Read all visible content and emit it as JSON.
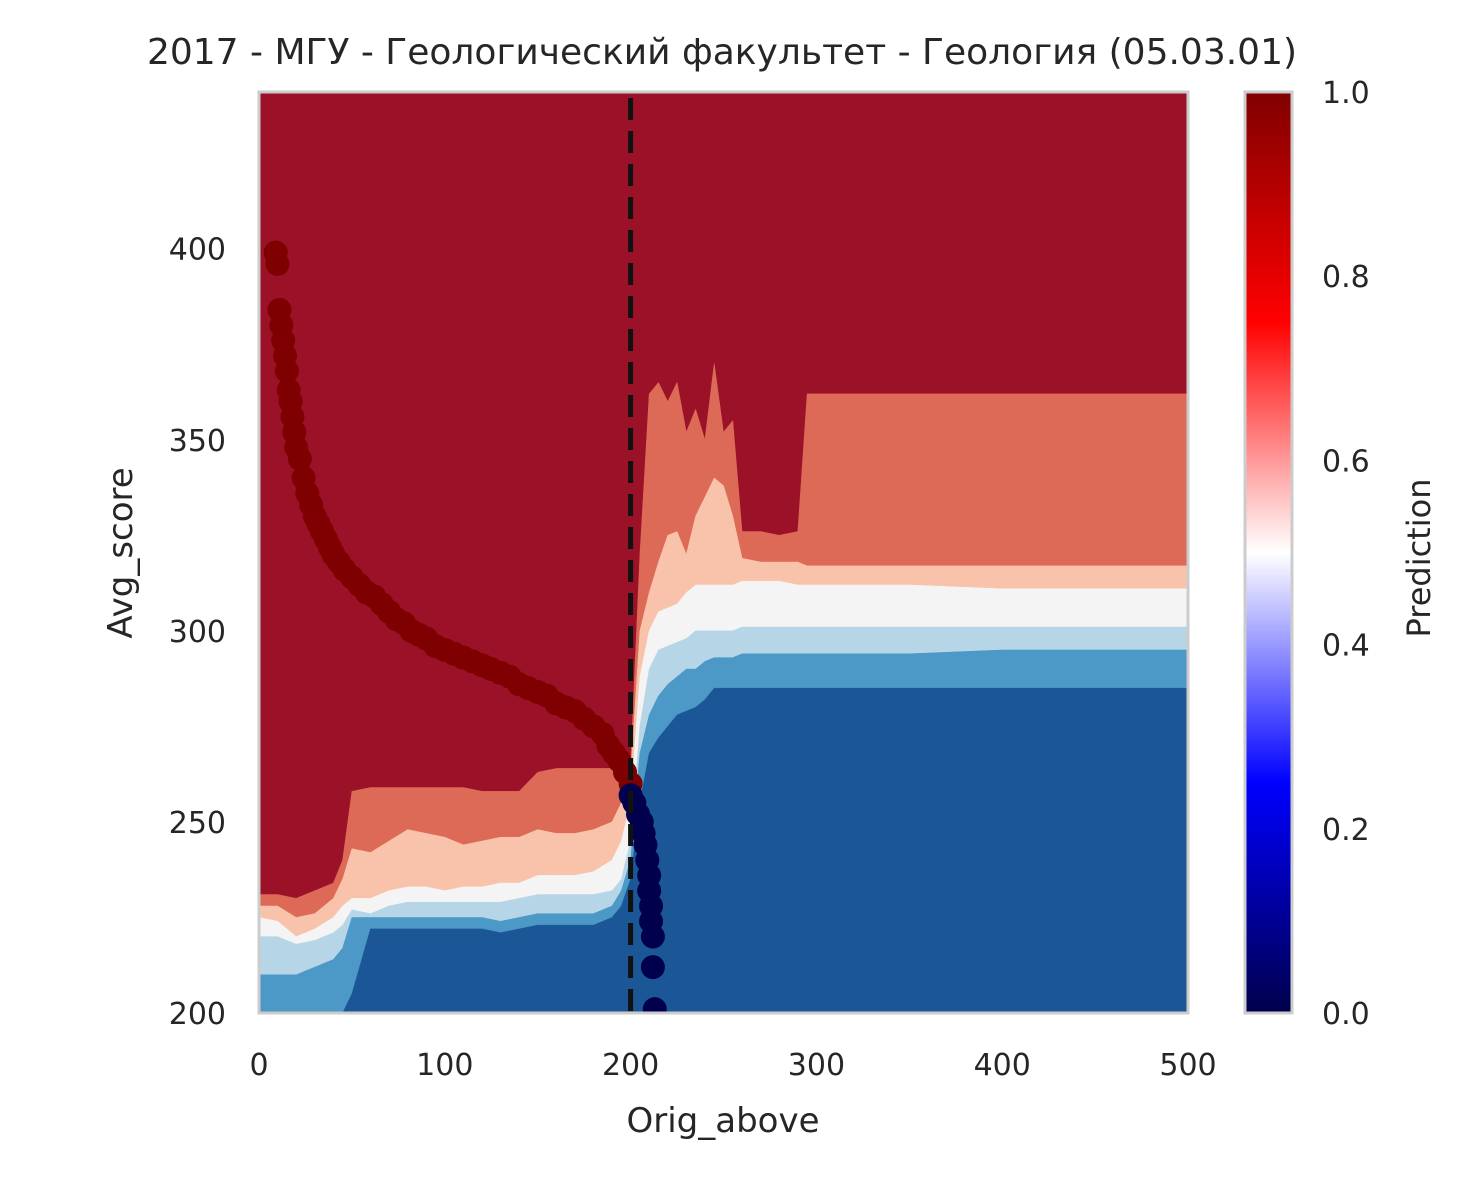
{
  "chart_data": {
    "type": "heatmap",
    "title": "2017 - МГУ - Геологический факультет - Геология (05.03.01)",
    "xlabel": "Orig_above",
    "ylabel": "Avg_score",
    "xlim": [
      0,
      500
    ],
    "ylim": [
      200,
      441
    ],
    "x_ticks": [
      "0",
      "100",
      "200",
      "300",
      "400",
      "500"
    ],
    "x_tick_values": [
      0,
      100,
      200,
      300,
      400,
      500
    ],
    "y_ticks": [
      "200",
      "250",
      "300",
      "350",
      "400"
    ],
    "y_tick_values": [
      200,
      250,
      300,
      350,
      400
    ],
    "grid": false,
    "threshold_line": {
      "x": 200,
      "style": "dashed",
      "color": "#111111"
    },
    "colorbar": {
      "label": "Prediction",
      "range": [
        0,
        1
      ],
      "ticks": [
        "0.0",
        "0.2",
        "0.4",
        "0.6",
        "0.8",
        "1.0"
      ],
      "tick_values": [
        0,
        0.2,
        0.4,
        0.6,
        0.8,
        1.0
      ],
      "colormap": "seismic",
      "stops": [
        {
          "offset": 0.0,
          "color": "#00004c"
        },
        {
          "offset": 0.25,
          "color": "#0000ff"
        },
        {
          "offset": 0.5,
          "color": "#ffffff"
        },
        {
          "offset": 0.75,
          "color": "#ff0000"
        },
        {
          "offset": 1.0,
          "color": "#800000"
        }
      ]
    },
    "contour_levels": [
      {
        "level": "0.9-1.0",
        "color": "#9b1228"
      },
      {
        "level": "0.7-0.9",
        "color": "#dc6a57"
      },
      {
        "level": "0.55-0.7",
        "color": "#f8c3aa"
      },
      {
        "level": "0.45-0.55",
        "color": "#f4f4f4"
      },
      {
        "level": "0.35-0.45",
        "color": "#b6d6e7"
      },
      {
        "level": "0.2-0.35",
        "color": "#4c98c7"
      },
      {
        "level": "0.0-0.2",
        "color": "#1b5796"
      }
    ],
    "contour_boundaries": {
      "x": [
        0,
        10,
        20,
        30,
        40,
        45,
        50,
        60,
        70,
        80,
        90,
        100,
        110,
        120,
        130,
        140,
        150,
        160,
        170,
        180,
        190,
        195,
        200,
        205,
        210,
        215,
        220,
        225,
        230,
        235,
        240,
        245,
        250,
        255,
        260,
        270,
        280,
        290,
        295,
        300,
        350,
        400,
        405,
        450,
        500
      ],
      "b_09": [
        231,
        231,
        230,
        232,
        234,
        240,
        258,
        259,
        259,
        259,
        259,
        259,
        259,
        258,
        258,
        258,
        263,
        264,
        264,
        264,
        264,
        264,
        265,
        320,
        362,
        365,
        360,
        365,
        352,
        358,
        350,
        370,
        352,
        355,
        326,
        326,
        325,
        326,
        362,
        362,
        362,
        362,
        362,
        362,
        362
      ],
      "b_07": [
        228,
        228,
        225,
        226,
        230,
        235,
        243,
        242,
        245,
        248,
        247,
        246,
        244,
        245,
        246,
        246,
        248,
        247,
        247,
        248,
        250,
        255,
        262,
        300,
        310,
        318,
        325,
        326,
        320,
        330,
        335,
        340,
        338,
        330,
        319,
        318,
        318,
        318,
        317,
        317,
        317,
        317,
        317,
        317,
        317
      ],
      "b_055": [
        225,
        224,
        220,
        222,
        225,
        228,
        230,
        230,
        232,
        233,
        233,
        232,
        233,
        233,
        234,
        234,
        236,
        236,
        236,
        237,
        240,
        245,
        255,
        288,
        300,
        305,
        306,
        307,
        310,
        312,
        312,
        312,
        312,
        312,
        313,
        313,
        313,
        312,
        312,
        312,
        312,
        311,
        311,
        311,
        311
      ],
      "b_045": [
        220,
        220,
        218,
        219,
        221,
        223,
        227,
        226,
        228,
        229,
        229,
        229,
        229,
        229,
        229,
        230,
        231,
        231,
        231,
        231,
        232,
        235,
        245,
        275,
        290,
        295,
        296,
        297,
        298,
        300,
        300,
        300,
        300,
        300,
        301,
        301,
        301,
        301,
        301,
        301,
        301,
        301,
        301,
        301,
        301
      ],
      "b_035": [
        210,
        210,
        210,
        212,
        214,
        217,
        225,
        225,
        225,
        225,
        225,
        225,
        225,
        225,
        224,
        225,
        226,
        226,
        226,
        226,
        228,
        232,
        240,
        268,
        278,
        283,
        286,
        288,
        290,
        290,
        292,
        293,
        293,
        293,
        294,
        294,
        294,
        294,
        294,
        294,
        294,
        295,
        295,
        295,
        295
      ],
      "b_02": [
        200,
        200,
        200,
        200,
        200,
        200,
        205,
        222,
        222,
        222,
        222,
        222,
        222,
        222,
        221,
        222,
        223,
        223,
        223,
        223,
        225,
        228,
        235,
        255,
        268,
        272,
        275,
        278,
        279,
        280,
        282,
        285,
        285,
        285,
        285,
        285,
        285,
        285,
        285,
        285,
        285,
        285,
        285,
        285,
        285
      ]
    },
    "series": [
      {
        "color": "#7f0000",
        "x": [
          9,
          10,
          11,
          12,
          13,
          14,
          15,
          16,
          17,
          18,
          19,
          20,
          22,
          24,
          26,
          28,
          30,
          32,
          34,
          36,
          38,
          40,
          43,
          46,
          50,
          54,
          58,
          62,
          66,
          70,
          74,
          78,
          82,
          86,
          90,
          95,
          100,
          105,
          110,
          115,
          120,
          125,
          130,
          135,
          140,
          145,
          150,
          155,
          160,
          165,
          170,
          175,
          180,
          185,
          188,
          191,
          194,
          197,
          200
        ],
        "y": [
          399,
          396,
          384,
          380,
          376,
          372,
          368,
          363,
          360,
          356,
          352,
          348,
          345,
          340,
          336,
          333,
          330,
          328,
          326,
          324,
          322,
          320,
          318,
          316,
          314,
          312,
          310,
          309,
          307,
          305,
          303,
          302,
          300,
          299,
          298,
          296,
          295,
          294,
          293,
          292,
          291,
          290,
          289,
          288,
          286,
          285,
          284,
          283,
          281,
          280,
          279,
          277,
          275,
          273,
          270,
          268,
          266,
          263,
          260
        ]
      },
      {
        "color": "#00004c",
        "x": [
          200,
          202,
          204,
          206,
          207,
          208,
          209,
          210,
          210,
          211,
          211,
          212,
          212,
          213
        ],
        "y": [
          257,
          255,
          252,
          250,
          247,
          244,
          240,
          236,
          232,
          228,
          224,
          220,
          212,
          201
        ]
      }
    ]
  }
}
